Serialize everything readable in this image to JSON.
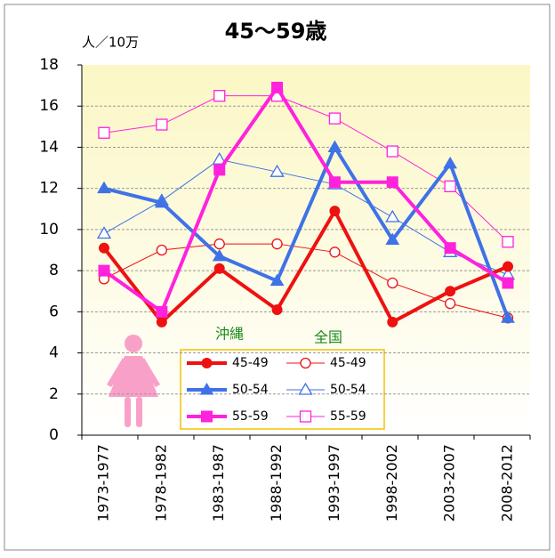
{
  "chart_data": {
    "type": "line",
    "title": "45～59歳",
    "y_unit_label": "人／10万",
    "categories": [
      "1973-1977",
      "1978-1982",
      "1983-1987",
      "1988-1992",
      "1993-1997",
      "1998-2002",
      "2003-2007",
      "2008-2012"
    ],
    "legend_groups": [
      "沖縄",
      "全国"
    ],
    "series": [
      {
        "name": "45-49",
        "group": 0,
        "color": "#ee1111",
        "marker": "circle",
        "filled": true,
        "line_width": 4,
        "values": [
          9.1,
          5.5,
          8.1,
          6.1,
          10.9,
          5.5,
          7.0,
          8.2
        ]
      },
      {
        "name": "45-49",
        "group": 1,
        "color": "#ee1111",
        "marker": "circle",
        "filled": false,
        "line_width": 1,
        "values": [
          7.6,
          9.0,
          9.3,
          9.3,
          8.9,
          7.4,
          6.4,
          5.7
        ]
      },
      {
        "name": "50-54",
        "group": 0,
        "color": "#3f72e6",
        "marker": "triangle",
        "filled": true,
        "line_width": 4,
        "values": [
          12.0,
          11.3,
          8.7,
          7.5,
          14.0,
          9.5,
          13.2,
          5.7
        ]
      },
      {
        "name": "50-54",
        "group": 1,
        "color": "#3f72e6",
        "marker": "triangle",
        "filled": false,
        "line_width": 1,
        "values": [
          9.8,
          11.4,
          13.4,
          12.8,
          12.2,
          10.6,
          8.9,
          7.8
        ]
      },
      {
        "name": "55-59",
        "group": 0,
        "color": "#ff22dd",
        "marker": "square",
        "filled": true,
        "line_width": 4,
        "values": [
          8.0,
          6.0,
          12.9,
          16.9,
          12.3,
          12.3,
          9.1,
          7.4
        ]
      },
      {
        "name": "55-59",
        "group": 1,
        "color": "#ff22dd",
        "marker": "square",
        "filled": false,
        "line_width": 1,
        "values": [
          14.7,
          15.1,
          16.5,
          16.5,
          15.4,
          13.8,
          12.1,
          9.4
        ]
      }
    ],
    "ylim": [
      0,
      18
    ],
    "yticks": [
      0,
      2,
      4,
      6,
      8,
      10,
      12,
      14,
      16,
      18
    ],
    "grid": true
  }
}
